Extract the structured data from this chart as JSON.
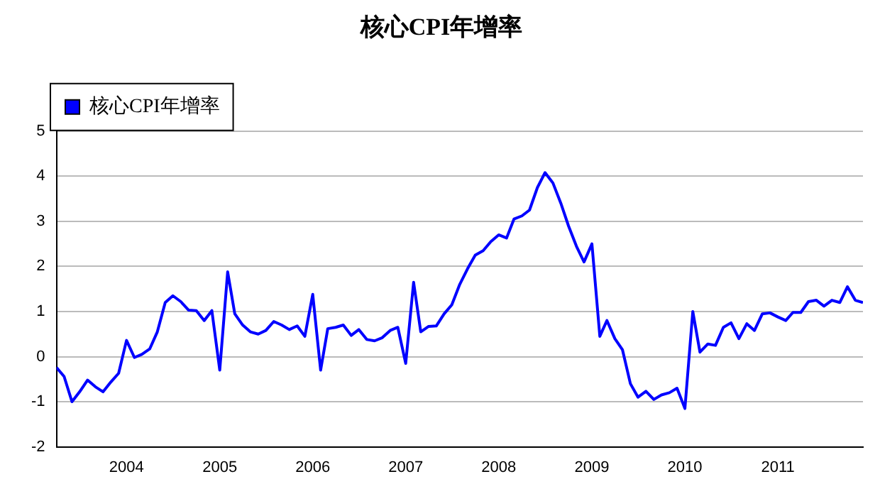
{
  "chart_data": {
    "type": "line",
    "title": "核心CPI年增率",
    "x": [
      "2003-04",
      "2003-05",
      "2003-06",
      "2003-07",
      "2003-08",
      "2003-09",
      "2003-10",
      "2003-11",
      "2003-12",
      "2004-01",
      "2004-02",
      "2004-03",
      "2004-04",
      "2004-05",
      "2004-06",
      "2004-07",
      "2004-08",
      "2004-09",
      "2004-10",
      "2004-11",
      "2004-12",
      "2005-01",
      "2005-02",
      "2005-03",
      "2005-04",
      "2005-05",
      "2005-06",
      "2005-07",
      "2005-08",
      "2005-09",
      "2005-10",
      "2005-11",
      "2005-12",
      "2006-01",
      "2006-02",
      "2006-03",
      "2006-04",
      "2006-05",
      "2006-06",
      "2006-07",
      "2006-08",
      "2006-09",
      "2006-10",
      "2006-11",
      "2006-12",
      "2007-01",
      "2007-02",
      "2007-03",
      "2007-04",
      "2007-05",
      "2007-06",
      "2007-07",
      "2007-08",
      "2007-09",
      "2007-10",
      "2007-11",
      "2007-12",
      "2008-01",
      "2008-02",
      "2008-03",
      "2008-04",
      "2008-05",
      "2008-06",
      "2008-07",
      "2008-08",
      "2008-09",
      "2008-10",
      "2008-11",
      "2008-12",
      "2009-01",
      "2009-02",
      "2009-03",
      "2009-04",
      "2009-05",
      "2009-06",
      "2009-07",
      "2009-08",
      "2009-09",
      "2009-10",
      "2009-11",
      "2009-12",
      "2010-01",
      "2010-02",
      "2010-03",
      "2010-04",
      "2010-05",
      "2010-06",
      "2010-07",
      "2010-08",
      "2010-09",
      "2010-10",
      "2010-11",
      "2010-12",
      "2011-01",
      "2011-02",
      "2011-03",
      "2011-04",
      "2011-05",
      "2011-06",
      "2011-07",
      "2011-08",
      "2011-09",
      "2011-10",
      "2011-11",
      "2011-12"
    ],
    "series": [
      {
        "name": "核心CPI年增率",
        "color": "#0000ff",
        "values": [
          -0.24,
          -0.44,
          -1.0,
          -0.78,
          -0.52,
          -0.67,
          -0.78,
          -0.56,
          -0.37,
          0.36,
          -0.02,
          0.05,
          0.17,
          0.55,
          1.2,
          1.35,
          1.22,
          1.03,
          1.02,
          0.8,
          1.02,
          -0.3,
          1.88,
          0.95,
          0.7,
          0.55,
          0.5,
          0.58,
          0.78,
          0.7,
          0.6,
          0.68,
          0.45,
          1.38,
          -0.3,
          0.62,
          0.65,
          0.7,
          0.47,
          0.6,
          0.38,
          0.35,
          0.42,
          0.58,
          0.65,
          -0.15,
          1.65,
          0.55,
          0.67,
          0.68,
          0.95,
          1.15,
          1.6,
          1.95,
          2.25,
          2.35,
          2.55,
          2.7,
          2.63,
          3.05,
          3.12,
          3.25,
          3.75,
          4.08,
          3.85,
          3.4,
          2.9,
          2.45,
          2.1,
          2.5,
          0.45,
          0.8,
          0.4,
          0.15,
          -0.6,
          -0.9,
          -0.77,
          -0.95,
          -0.85,
          -0.8,
          -0.7,
          -1.15,
          1.0,
          0.1,
          0.28,
          0.25,
          0.65,
          0.75,
          0.4,
          0.73,
          0.58,
          0.95,
          0.97,
          0.88,
          0.8,
          0.98,
          0.98,
          1.22,
          1.25,
          1.12,
          1.25,
          1.2,
          1.55,
          1.25,
          1.2
        ]
      }
    ],
    "xlim": [
      "2003-04",
      "2011-12"
    ],
    "xticks": [
      "2004",
      "2005",
      "2006",
      "2007",
      "2008",
      "2009",
      "2010",
      "2011"
    ],
    "ylim": [
      -2,
      5
    ],
    "yticks": [
      -2,
      -1,
      0,
      1,
      2,
      3,
      4,
      5
    ],
    "grid": "y",
    "legend": "top left",
    "marker": "none",
    "line_style": "solid"
  }
}
